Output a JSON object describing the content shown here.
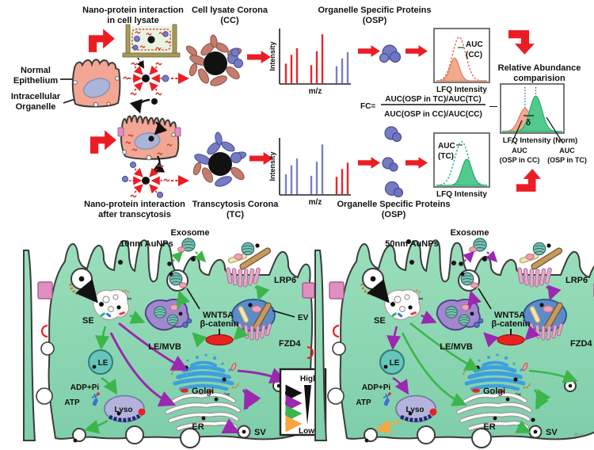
{
  "workflow": {
    "step_lysate_line1": "Nano-protein interaction",
    "step_lysate_line2": "in cell lysate",
    "cc_line1": "Cell lysate Corona",
    "cc_line2": "(CC)",
    "osp_top_line1": "Organelle Specific Proteins",
    "osp_top_line2": "(OSP)",
    "normal_line1": "Normal",
    "normal_line2": "Epithelium",
    "intra_line1": "Intracellular",
    "intra_line2": "Organelle",
    "intensity": "Intensity",
    "mz": "m/z",
    "auc_cc_line1": "AUC",
    "auc_cc_line2": "(CC)",
    "lfq_cc": "LFQ Intensity",
    "rel_line1": "Relative Abundance",
    "rel_line2": "comparision",
    "fc_lhs": "FC=",
    "fc_num": "AUC(OSP in TC)/AUC(TC)",
    "fc_den": "AUC(OSP in CC)/AUC(CC)",
    "minus": "—",
    "delta": "δ",
    "lfq_norm": "LFQ Intensity (Norm)",
    "auc_osp_cc_line1": "AUC",
    "auc_osp_cc_line2": "(OSP in CC)",
    "auc_osp_tc_line1": "AUC",
    "auc_osp_tc_line2": "(OSP in TC)",
    "step_transcytosis_line1": "Nano-protein interaction",
    "step_transcytosis_line2": "after transcytosis",
    "tc_line1": "Transcytosis Corona",
    "tc_line2": "(TC)",
    "osp_bottom_line1": "Organelle Specific Proteins",
    "osp_bottom_line2": "(OSP)",
    "auc_tc_line1": "AUC",
    "auc_tc_line2": "(TC)",
    "lfq_tc": "LFQ Intensity"
  },
  "cells": {
    "left_title": "10nm AuNPs",
    "right_title": "50nm AuNPs",
    "exosome": "Exosome",
    "lrp6": "LRP6",
    "wnt5a": "WNT5A",
    "ev": "EV",
    "se": "SE",
    "beta_catenin": "β-catenin",
    "le_mvb": "LE/MVB",
    "fzd4": "FZD4",
    "le": "LE",
    "adp_pi": "ADP+Pi",
    "atp": "ATP",
    "lyso": "Lyso",
    "golgi": "Golgi",
    "er": "ER",
    "sv": "SV",
    "legend_high": "High",
    "legend_low": "Low"
  },
  "misc": {
    "corner_arrow": "←"
  },
  "colors": {
    "red_arrow": "#ec1c24",
    "green_arrow": "#3cb54a",
    "purple_arrow": "#9c27b0",
    "orange_arrow": "#f7a63f",
    "cell_green": "#90d8b1",
    "epithelium_pink": "#f2a693",
    "nucleus_blue": "#a9b6d8",
    "corona_salmon": "#c47c6f",
    "protein_blue": "#767bc4",
    "salmon_fill": "#f2a98e",
    "green_fill": "#54c98e",
    "beta_catenin_red": "#e8231f",
    "lrp6_tan": "#c49a5e",
    "junction_pink": "#e18fc0"
  },
  "chart_data": [
    {
      "id": "mz_cc",
      "type": "bar",
      "title": "Cell lysate Corona mass spectrum",
      "xlabel": "m/z",
      "ylabel": "Intensity",
      "groups": [
        {
          "color": "#e8262c",
          "heights": [
            0.38,
            0.55,
            0.68
          ]
        },
        {
          "color": "#e8262c",
          "heights": [
            0.35,
            0.62,
            0.95
          ]
        },
        {
          "color": "#7a7fc8",
          "heights": [
            0.33,
            0.48,
            0.6
          ]
        }
      ]
    },
    {
      "id": "mz_tc",
      "type": "bar",
      "title": "Transcytosis Corona mass spectrum",
      "xlabel": "m/z",
      "ylabel": "Intensity",
      "groups": [
        {
          "color": "#7a7fc8",
          "heights": [
            0.38,
            0.55,
            0.68
          ]
        },
        {
          "color": "#7a7fc8",
          "heights": [
            0.35,
            0.62,
            0.95
          ]
        },
        {
          "color": "#e8262c",
          "heights": [
            0.33,
            0.48,
            0.6
          ]
        }
      ]
    },
    {
      "id": "auc_cc",
      "type": "density",
      "xlabel": "LFQ Intensity",
      "annotation": "AUC (CC)",
      "curves": [
        {
          "center": 0.45,
          "width": 0.13,
          "height": 0.92,
          "stroke": "#e2674d",
          "dashed": true,
          "fill": "none"
        },
        {
          "center": 0.36,
          "width": 0.09,
          "height": 0.48,
          "stroke": "#d98a6e",
          "fill": "#f2a98e"
        }
      ]
    },
    {
      "id": "auc_tc",
      "type": "density",
      "xlabel": "LFQ Intensity",
      "annotation": "AUC (TC)",
      "curves": [
        {
          "center": 0.5,
          "width": 0.14,
          "height": 0.92,
          "stroke": "#2bb673",
          "dashed": true,
          "fill": "none"
        },
        {
          "center": 0.6,
          "width": 0.1,
          "height": 0.55,
          "stroke": "#2bb673",
          "fill": "#54c98e"
        }
      ]
    },
    {
      "id": "compare",
      "type": "density",
      "xlabel": "LFQ Intensity (Norm)",
      "annotations": [
        "δ",
        "AUC (OSP in CC)",
        "AUC (OSP in TC)"
      ],
      "vlines": [
        0.38,
        0.56
      ],
      "curves": [
        {
          "center": 0.38,
          "width": 0.1,
          "height": 0.52,
          "stroke": "#d98a6e",
          "fill": "#f2a98e"
        },
        {
          "center": 0.56,
          "width": 0.1,
          "height": 0.8,
          "stroke": "#2bb673",
          "fill": "#54c98e"
        }
      ]
    }
  ]
}
